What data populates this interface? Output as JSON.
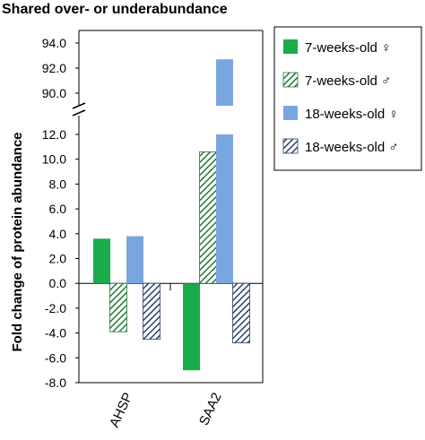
{
  "chart_data": {
    "type": "bar",
    "title": "Shared over- or underabundance",
    "ylabel": "Fold change of protein abundance",
    "xlabel": "",
    "categories": [
      "AHSP",
      "SAA2"
    ],
    "series": [
      {
        "name": "7-weeks-old ♀",
        "values": [
          3.6,
          -7.0
        ],
        "color": "#1aab4a",
        "pattern": "solid"
      },
      {
        "name": "7-weeks-old ♂",
        "values": [
          -3.9,
          10.6
        ],
        "color": "#1aab4a",
        "pattern": "hatched"
      },
      {
        "name": "18-weeks-old ♀",
        "values": [
          3.8,
          92.7
        ],
        "color": "#7aa6e0",
        "pattern": "solid"
      },
      {
        "name": "18-weeks-old ♂",
        "values": [
          -4.5,
          -4.8
        ],
        "color": "#7aa6e0",
        "pattern": "hatched"
      }
    ],
    "axis_break": true,
    "y_lower_segment": {
      "ylim": [
        -8.0,
        12.0
      ],
      "ticks": [
        "-8.0",
        "-6.0",
        "-4.0",
        "-2.0",
        "0.0",
        "2.0",
        "4.0",
        "6.0",
        "8.0",
        "10.0",
        "12.0"
      ]
    },
    "y_upper_segment": {
      "ylim": [
        90.0,
        94.0
      ],
      "ticks": [
        "90.0",
        "92.0",
        "94.0"
      ]
    },
    "legend_position": "right",
    "grid": false
  }
}
